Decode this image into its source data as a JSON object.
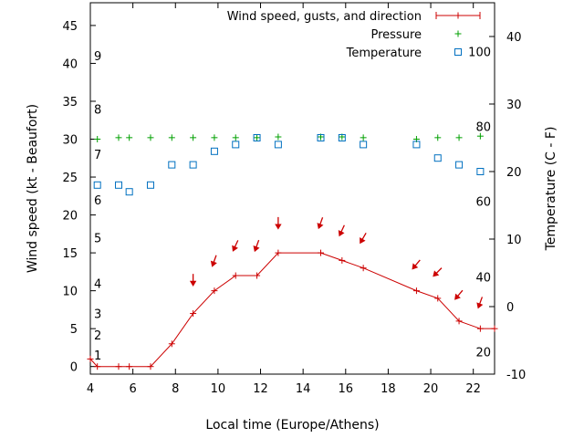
{
  "chart_data": {
    "type": "line",
    "xlabel": "Local time (Europe/Athens)",
    "ylabel_left": "Wind speed (kt - Beaufort)",
    "ylabel_right": "Temperature (C - F)",
    "xlim": [
      4,
      23
    ],
    "ylim_left": [
      -1,
      48
    ],
    "ylim_right": [
      -10,
      45
    ],
    "x_ticks": [
      4,
      6,
      8,
      10,
      12,
      14,
      16,
      18,
      20,
      22
    ],
    "y_ticks_left": [
      0,
      5,
      10,
      15,
      20,
      25,
      30,
      35,
      40,
      45
    ],
    "y_ticks_right": [
      -10,
      0,
      10,
      20,
      30,
      40
    ],
    "beaufort_labels": [
      {
        "label": "1",
        "kt": 1.5
      },
      {
        "label": "2",
        "kt": 4.2
      },
      {
        "label": "3",
        "kt": 7.0
      },
      {
        "label": "4",
        "kt": 11.0
      },
      {
        "label": "5",
        "kt": 17.0
      },
      {
        "label": "6",
        "kt": 22.0
      },
      {
        "label": "7",
        "kt": 28.0
      },
      {
        "label": "8",
        "kt": 34.0
      },
      {
        "label": "9",
        "kt": 41.0
      }
    ],
    "fahrenheit_labels": [
      {
        "label": "20",
        "c": -6.7
      },
      {
        "label": "40",
        "c": 4.4
      },
      {
        "label": "60",
        "c": 15.6
      },
      {
        "label": "80",
        "c": 26.7
      },
      {
        "label": "100",
        "c": 37.8
      }
    ],
    "legend": [
      {
        "name": "Wind speed, gusts, and direction",
        "color": "#cc0000"
      },
      {
        "name": "Pressure",
        "color": "#00a000"
      },
      {
        "name": "Temperature",
        "color": "#0070c0"
      }
    ],
    "legend_position": "top-right",
    "series": [
      {
        "name": "Wind speed, gusts, and direction",
        "axis": "left",
        "color": "#cc0000",
        "x": [
          4.0,
          4.33,
          5.33,
          5.83,
          6.83,
          7.83,
          8.83,
          9.83,
          10.83,
          11.83,
          12.83,
          14.83,
          15.83,
          16.83,
          19.33,
          20.33,
          21.33,
          22.33,
          23.0
        ],
        "y": [
          1,
          0,
          0,
          0,
          0,
          3,
          7,
          10,
          12,
          12,
          15,
          15,
          14,
          13,
          10,
          9,
          6,
          5,
          5
        ]
      },
      {
        "name": "Pressure",
        "axis": "left",
        "color": "#00a000",
        "x": [
          4.33,
          5.33,
          5.83,
          6.83,
          7.83,
          8.83,
          9.83,
          10.83,
          11.83,
          12.83,
          14.83,
          15.83,
          16.83,
          19.33,
          20.33,
          21.33,
          22.33
        ],
        "y": [
          30.0,
          30.2,
          30.2,
          30.2,
          30.2,
          30.2,
          30.2,
          30.2,
          30.2,
          30.3,
          30.3,
          30.3,
          30.2,
          30.0,
          30.2,
          30.2,
          30.4
        ]
      },
      {
        "name": "Temperature",
        "axis": "right",
        "color": "#0070c0",
        "x": [
          4.33,
          5.33,
          5.83,
          6.83,
          7.83,
          8.83,
          9.83,
          10.83,
          11.83,
          12.83,
          14.83,
          15.83,
          16.83,
          19.33,
          20.33,
          21.33,
          22.33
        ],
        "y": [
          18,
          18,
          17,
          18,
          21,
          21,
          23,
          24,
          25,
          24,
          25,
          25,
          24,
          24,
          22,
          21,
          20
        ]
      }
    ],
    "direction_arrows": {
      "color": "#cc0000",
      "x": [
        8.83,
        9.83,
        10.83,
        11.83,
        12.83,
        14.83,
        15.83,
        16.83,
        19.33,
        20.33,
        21.33,
        22.33
      ],
      "y": [
        11.5,
        14.0,
        16.0,
        16.0,
        19.0,
        19.0,
        18.0,
        17.0,
        13.5,
        12.5,
        9.5,
        8.5
      ],
      "angle_deg": [
        0,
        20,
        25,
        20,
        0,
        20,
        25,
        30,
        40,
        45,
        40,
        20
      ]
    }
  }
}
